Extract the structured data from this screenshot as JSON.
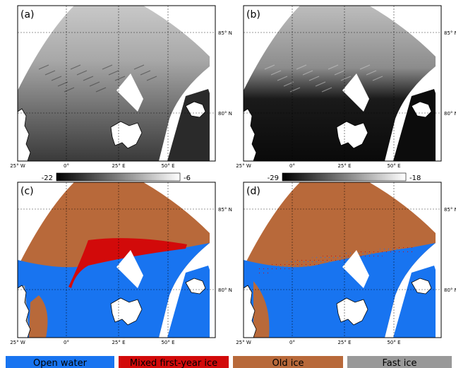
{
  "panels": [
    {
      "id": "a",
      "label": "(a)",
      "kind": "sar-gray",
      "colorbar": {
        "min": "-22",
        "max": "-6"
      }
    },
    {
      "id": "b",
      "label": "(b)",
      "kind": "sar-dark",
      "colorbar": {
        "min": "-29",
        "max": "-18"
      }
    },
    {
      "id": "c",
      "label": "(c)",
      "kind": "class-smooth"
    },
    {
      "id": "d",
      "label": "(d)",
      "kind": "class-noisy"
    }
  ],
  "lon_labels": [
    "25° W",
    "0°",
    "25° E",
    "50° E"
  ],
  "lat_labels": [
    "85° N",
    "80° N"
  ],
  "legend": [
    {
      "label": "Open water",
      "color": "#1874f0"
    },
    {
      "label": "Mixed first-year ice",
      "color": "#d20a0a"
    },
    {
      "label": "Old ice",
      "color": "#b8693a"
    },
    {
      "label": "Fast ice",
      "color": "#999999"
    }
  ]
}
